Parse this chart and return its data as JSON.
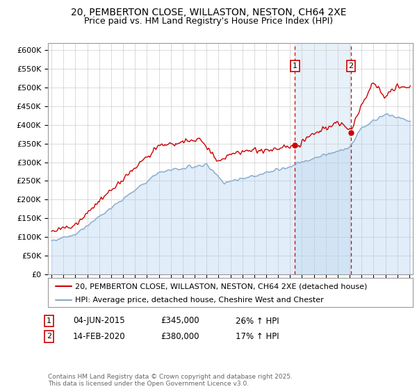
{
  "title": "20, PEMBERTON CLOSE, WILLASTON, NESTON, CH64 2XE",
  "subtitle": "Price paid vs. HM Land Registry's House Price Index (HPI)",
  "ylim": [
    0,
    620000
  ],
  "yticks": [
    0,
    50000,
    100000,
    150000,
    200000,
    250000,
    300000,
    350000,
    400000,
    450000,
    500000,
    550000,
    600000
  ],
  "xlim_start": 1994.7,
  "xlim_end": 2025.3,
  "transaction1_date": 2015.42,
  "transaction1_price": 345000,
  "transaction1_label": "1",
  "transaction1_pct": "26% ↑ HPI",
  "transaction1_display": "04-JUN-2015",
  "transaction2_date": 2020.12,
  "transaction2_price": 380000,
  "transaction2_label": "2",
  "transaction2_pct": "17% ↑ HPI",
  "transaction2_display": "14-FEB-2020",
  "legend_line1": "20, PEMBERTON CLOSE, WILLASTON, NESTON, CH64 2XE (detached house)",
  "legend_line2": "HPI: Average price, detached house, Cheshire West and Chester",
  "footer": "Contains HM Land Registry data © Crown copyright and database right 2025.\nThis data is licensed under the Open Government Licence v3.0.",
  "price_color": "#cc0000",
  "hpi_color": "#aaccee",
  "hpi_line_color": "#88aacc",
  "bg_color": "#ffffff",
  "grid_color": "#cccccc",
  "shade_color": "#d8e8f5",
  "title_fontsize": 10,
  "subtitle_fontsize": 9,
  "tick_fontsize": 8,
  "legend_fontsize": 8,
  "annotation_fontsize": 8.5
}
